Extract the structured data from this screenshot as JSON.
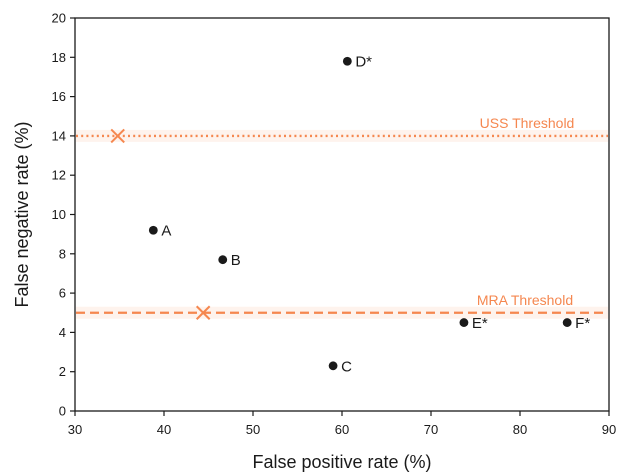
{
  "chart_data": {
    "type": "scatter",
    "title": "",
    "xlabel": "False positive rate (%)",
    "ylabel": "False negative rate (%)",
    "xlim": [
      30,
      90
    ],
    "ylim": [
      0,
      20
    ],
    "xticks": [
      30,
      40,
      50,
      60,
      70,
      80,
      90
    ],
    "yticks": [
      0,
      2,
      4,
      6,
      8,
      10,
      12,
      14,
      16,
      18,
      20
    ],
    "grid": false,
    "points": [
      {
        "label": "A",
        "x": 38.8,
        "y": 9.2
      },
      {
        "label": "B",
        "x": 46.6,
        "y": 7.7
      },
      {
        "label": "C",
        "x": 59.0,
        "y": 2.3
      },
      {
        "label": "D*",
        "x": 60.6,
        "y": 17.8
      },
      {
        "label": "E*",
        "x": 73.7,
        "y": 4.5
      },
      {
        "label": "F*",
        "x": 85.3,
        "y": 4.5
      }
    ],
    "thresholds": [
      {
        "label": "USS Threshold",
        "y": 14,
        "style": "dotted",
        "marker_x": 34.8,
        "color": "#f5874f"
      },
      {
        "label": "MRA Threshold",
        "y": 5,
        "style": "dashed",
        "marker_x": 44.4,
        "color": "#f5874f"
      }
    ],
    "colors": {
      "points": "#1a1a1a",
      "threshold": "#f5874f",
      "axis": "#1a1a1a"
    }
  }
}
